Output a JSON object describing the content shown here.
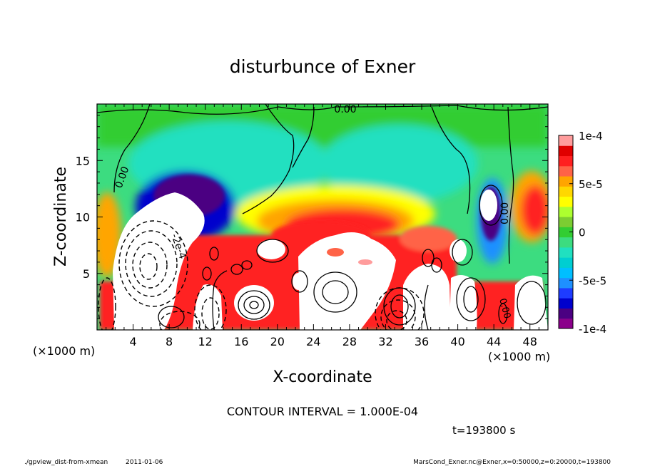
{
  "chart_data": {
    "type": "heatmap",
    "title": "disturbunce of Exner",
    "xlabel": "X-coordinate",
    "ylabel": "Z-coordinate",
    "x_unit_left": "(×1000 m)",
    "x_unit_right": "(×1000 m)",
    "xlim": [
      0,
      50
    ],
    "ylim": [
      0,
      20
    ],
    "xticks": [
      "4",
      "8",
      "12",
      "16",
      "20",
      "24",
      "28",
      "32",
      "36",
      "40",
      "44",
      "48"
    ],
    "xtick_values": [
      4,
      8,
      12,
      16,
      20,
      24,
      28,
      32,
      36,
      40,
      44,
      48
    ],
    "yticks": [
      "5",
      "10",
      "15"
    ],
    "ytick_values": [
      5,
      10,
      15
    ],
    "colorbar": {
      "range": [
        -0.0001,
        0.0001
      ],
      "tick_labels": [
        "1e-4",
        "5e-5",
        "0",
        "-5e-5",
        "-1e-4"
      ],
      "tick_values": [
        0.0001,
        5e-05,
        0,
        -5e-05,
        -0.0001
      ],
      "colors": [
        "#8b008b",
        "#4b0082",
        "#0000cd",
        "#1e3cff",
        "#1e90ff",
        "#00bfff",
        "#00ced1",
        "#20e0c0",
        "#3cdc80",
        "#32cd32",
        "#7ccd32",
        "#adff2f",
        "#ffff00",
        "#ffd700",
        "#ffa500",
        "#ff6347",
        "#ff2020",
        "#e00000",
        "#ff9c9c"
      ]
    },
    "contour_labels": [
      "0.00",
      "0.00",
      "0.00",
      "-2e-4",
      "0.00"
    ],
    "footer": {
      "contour_interval": "CONTOUR INTERVAL = 1.000E-04",
      "time": "t=193800 s",
      "script_name": "./gpview_dist-from-xmean",
      "date": "2011-01-06",
      "variable_info": "MarsCond_Exner.nc@Exner,x=0:50000,z=0:20000,t=193800"
    }
  }
}
